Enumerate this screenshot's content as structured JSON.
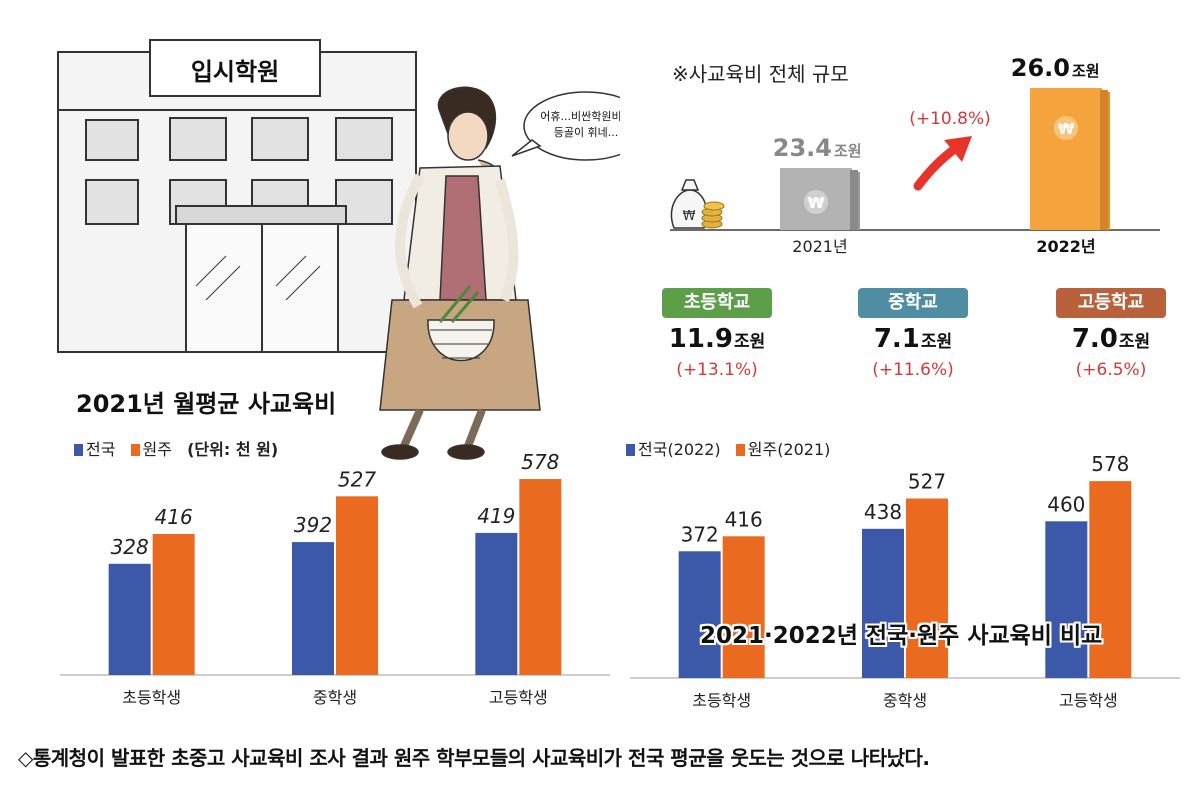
{
  "illustration": {
    "sign": "입시학원",
    "speech": [
      "어휴...비싼학원비에",
      "등골이 휘네..."
    ]
  },
  "scale": {
    "title": "※사교육비 전체 규모",
    "years": [
      {
        "label": "2021년",
        "value": "23.4",
        "unit": "조원"
      },
      {
        "label": "2022년",
        "value": "26.0",
        "unit": "조원"
      }
    ],
    "growth": "(+10.8%)",
    "won_symbol": "₩",
    "colors": {
      "bar_2021": "#9a9a9a",
      "bar_2022": "#f5a33c",
      "arrow": "#e8332a"
    }
  },
  "levels": [
    {
      "name": "초등학교",
      "value": "11.9",
      "unit": "조원",
      "growth": "(+13.1%)",
      "color": "#5c9f48"
    },
    {
      "name": "중학교",
      "value": "7.1",
      "unit": "조원",
      "growth": "(+11.6%)",
      "color": "#4f8da3"
    },
    {
      "name": "고등학교",
      "value": "7.0",
      "unit": "조원",
      "growth": "(+6.5%)",
      "color": "#b8613a"
    }
  ],
  "chart1_legend": {
    "series_a": "전국",
    "series_b": "원주",
    "unit": "(단위: 천 원)"
  },
  "chart2_legend": {
    "series_a": "전국(2022)",
    "series_b": "원주(2021)"
  },
  "caption": "◇통계청이 발표한 초중고 사교육비 조사 결과 원주 학부모들의 사교육비가 전국 평균을 웃도는 것으로 나타났다.",
  "chart_data": [
    {
      "type": "bar",
      "title": "2021년 월평균 사교육비",
      "categories": [
        "초등학생",
        "중학생",
        "고등학생"
      ],
      "series": [
        {
          "name": "전국",
          "values": [
            328,
            392,
            419
          ],
          "color": "#3b59a8"
        },
        {
          "name": "원주",
          "values": [
            416,
            527,
            578
          ],
          "color": "#ea6b1f"
        }
      ],
      "unit": "(단위: 천 원)",
      "ylim": [
        0,
        640
      ],
      "grid": false,
      "legend": "top-left"
    },
    {
      "type": "bar",
      "title": "2021·2022년 전국·원주 사교육비 비교",
      "categories": [
        "초등학생",
        "중학생",
        "고등학생"
      ],
      "series": [
        {
          "name": "전국(2022)",
          "values": [
            372,
            438,
            460
          ],
          "color": "#3b59a8"
        },
        {
          "name": "원주(2021)",
          "values": [
            416,
            527,
            578
          ],
          "color": "#ea6b1f"
        }
      ],
      "ylim": [
        0,
        640
      ],
      "grid": false,
      "legend": "top-left"
    }
  ]
}
